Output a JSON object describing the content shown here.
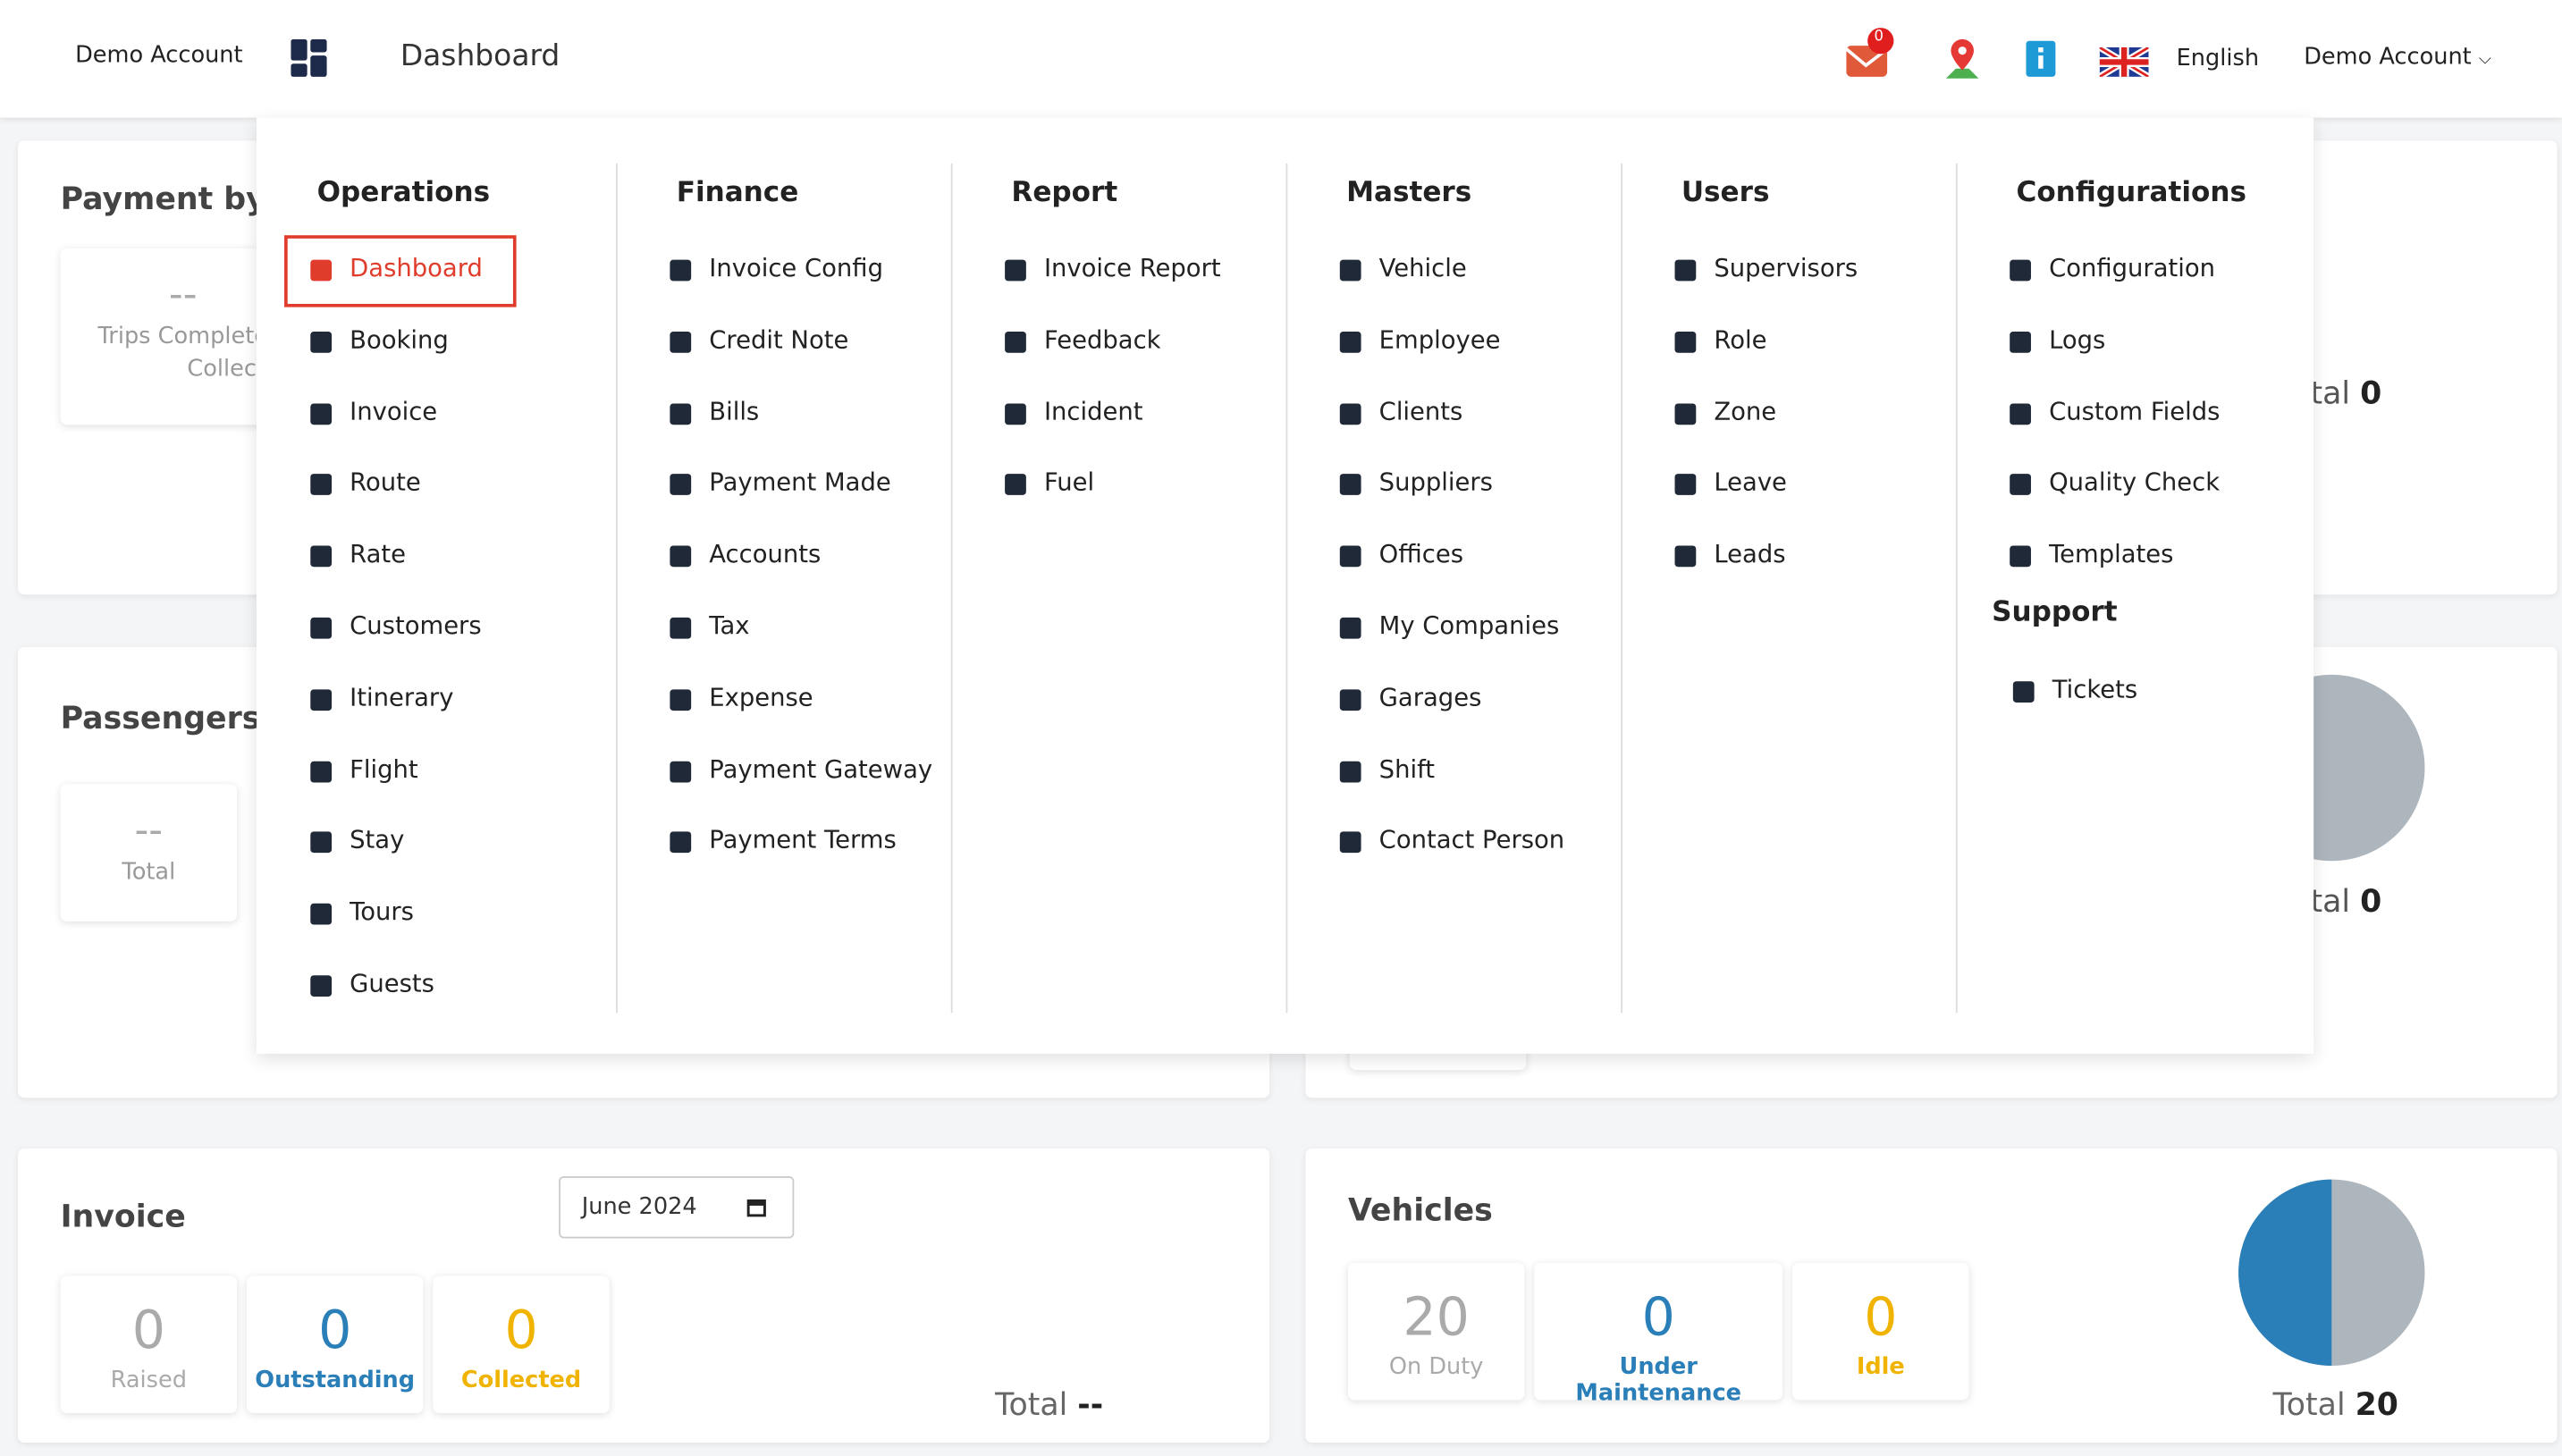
{
  "header": {
    "account": "Demo Account",
    "title": "Dashboard",
    "notification_count": "0",
    "language": "English",
    "user": "Demo Account"
  },
  "menu": {
    "columns": [
      {
        "title": "Operations",
        "items": [
          "Dashboard",
          "Booking",
          "Invoice",
          "Route",
          "Rate",
          "Customers",
          "Itinerary",
          "Flight",
          "Stay",
          "Tours",
          "Guests"
        ]
      },
      {
        "title": "Finance",
        "items": [
          "Invoice Config",
          "Credit Note",
          "Bills",
          "Payment Made",
          "Accounts",
          "Tax",
          "Expense",
          "Payment Gateway",
          "Payment Terms"
        ]
      },
      {
        "title": "Report",
        "items": [
          "Invoice Report",
          "Feedback",
          "Incident",
          "Fuel"
        ]
      },
      {
        "title": "Masters",
        "items": [
          "Vehicle",
          "Employee",
          "Clients",
          "Suppliers",
          "Offices",
          "My Companies",
          "Garages",
          "Shift",
          "Contact Person"
        ]
      },
      {
        "title": "Users",
        "items": [
          "Supervisors",
          "Role",
          "Zone",
          "Leave",
          "Leads"
        ]
      },
      {
        "title": "Configurations",
        "items": [
          "Configuration",
          "Logs",
          "Custom Fields",
          "Quality Check",
          "Templates"
        ]
      }
    ],
    "support": {
      "title": "Support",
      "items": [
        "Tickets"
      ]
    }
  },
  "background": {
    "payment": {
      "title": "Payment by",
      "value": "--",
      "label1": "Trips Complete",
      "label2": "Collec",
      "total_label": "Total",
      "total": "0"
    },
    "passengers": {
      "title": "Passengers",
      "value": "--",
      "label": "Total",
      "total_label": "Total",
      "total": "0"
    }
  },
  "invoice": {
    "title": "Invoice",
    "date": "June 2024",
    "stats": [
      {
        "value": "0",
        "label": "Raised"
      },
      {
        "value": "0",
        "label": "Outstanding"
      },
      {
        "value": "0",
        "label": "Collected"
      }
    ],
    "total_label": "Total",
    "total": "--"
  },
  "vehicles": {
    "title": "Vehicles",
    "stats": [
      {
        "value": "20",
        "label": "On Duty"
      },
      {
        "value": "0",
        "label": "Under Maintenance"
      },
      {
        "value": "0",
        "label": "Idle"
      }
    ],
    "total_label": "Total",
    "total": "20"
  }
}
